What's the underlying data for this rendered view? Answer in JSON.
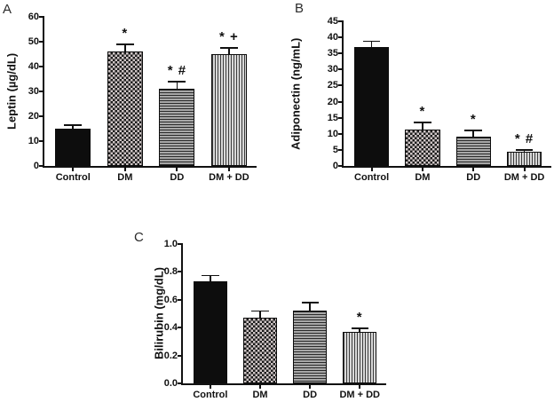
{
  "figure": {
    "background": "#ffffff",
    "axis_color": "#111111"
  },
  "colors": {
    "bar_solid": "#0d0d0d",
    "checker_dark": "#1c1c1c",
    "checker_light": "#cfc6c6",
    "hlines_dark": "#2a2a2a",
    "hlines_light": "#a8a8a8",
    "vlines_dark": "#3c3c3c",
    "vlines_light": "#d8d8d8"
  },
  "chart_data": [
    {
      "panel": "A",
      "type": "bar",
      "title": "",
      "xlabel": "",
      "ylabel": "Leptin (µg/dL)",
      "ylim": [
        0,
        60
      ],
      "ytick_labels": [
        "0",
        "10",
        "20",
        "30",
        "40",
        "50",
        "60"
      ],
      "grid": false,
      "legend": "none",
      "categories": [
        "Control",
        "DM",
        "DD",
        "DM + DD"
      ],
      "values": [
        15,
        46,
        31,
        45
      ],
      "errors_plus": [
        1.5,
        3,
        3,
        2.5
      ],
      "annotations": [
        "",
        "*",
        "* #",
        "* +"
      ],
      "patterns": [
        "solid-black",
        "checker",
        "horizontal-lines",
        "vertical-lines"
      ]
    },
    {
      "panel": "B",
      "type": "bar",
      "title": "",
      "xlabel": "",
      "ylabel": "Adiponectin (ng/mL)",
      "ylim": [
        0,
        45
      ],
      "ytick_labels": [
        "0",
        "5",
        "10",
        "15",
        "20",
        "25",
        "30",
        "35",
        "40",
        "45"
      ],
      "grid": false,
      "legend": "none",
      "categories": [
        "Control",
        "DM",
        "DD",
        "DM + DD"
      ],
      "values": [
        37,
        11.3,
        9,
        4.3
      ],
      "errors_plus": [
        1.8,
        2.2,
        2,
        0.7
      ],
      "annotations": [
        "",
        "*",
        "*",
        "* #"
      ],
      "patterns": [
        "solid-black",
        "checker",
        "horizontal-lines",
        "vertical-lines"
      ]
    },
    {
      "panel": "C",
      "type": "bar",
      "title": "",
      "xlabel": "",
      "ylabel": "Bilirubin (mg/dL)",
      "ylim": [
        0,
        1.0
      ],
      "ytick_labels": [
        "0.0",
        "0.2",
        "0.4",
        "0.6",
        "0.8",
        "1.0"
      ],
      "grid": false,
      "legend": "none",
      "categories": [
        "Control",
        "DM",
        "DD",
        "DM + DD"
      ],
      "values": [
        0.73,
        0.47,
        0.52,
        0.37
      ],
      "errors_plus": [
        0.045,
        0.05,
        0.06,
        0.025
      ],
      "annotations": [
        "",
        "",
        "",
        "*"
      ],
      "patterns": [
        "solid-black",
        "checker",
        "horizontal-lines",
        "vertical-lines"
      ]
    }
  ]
}
